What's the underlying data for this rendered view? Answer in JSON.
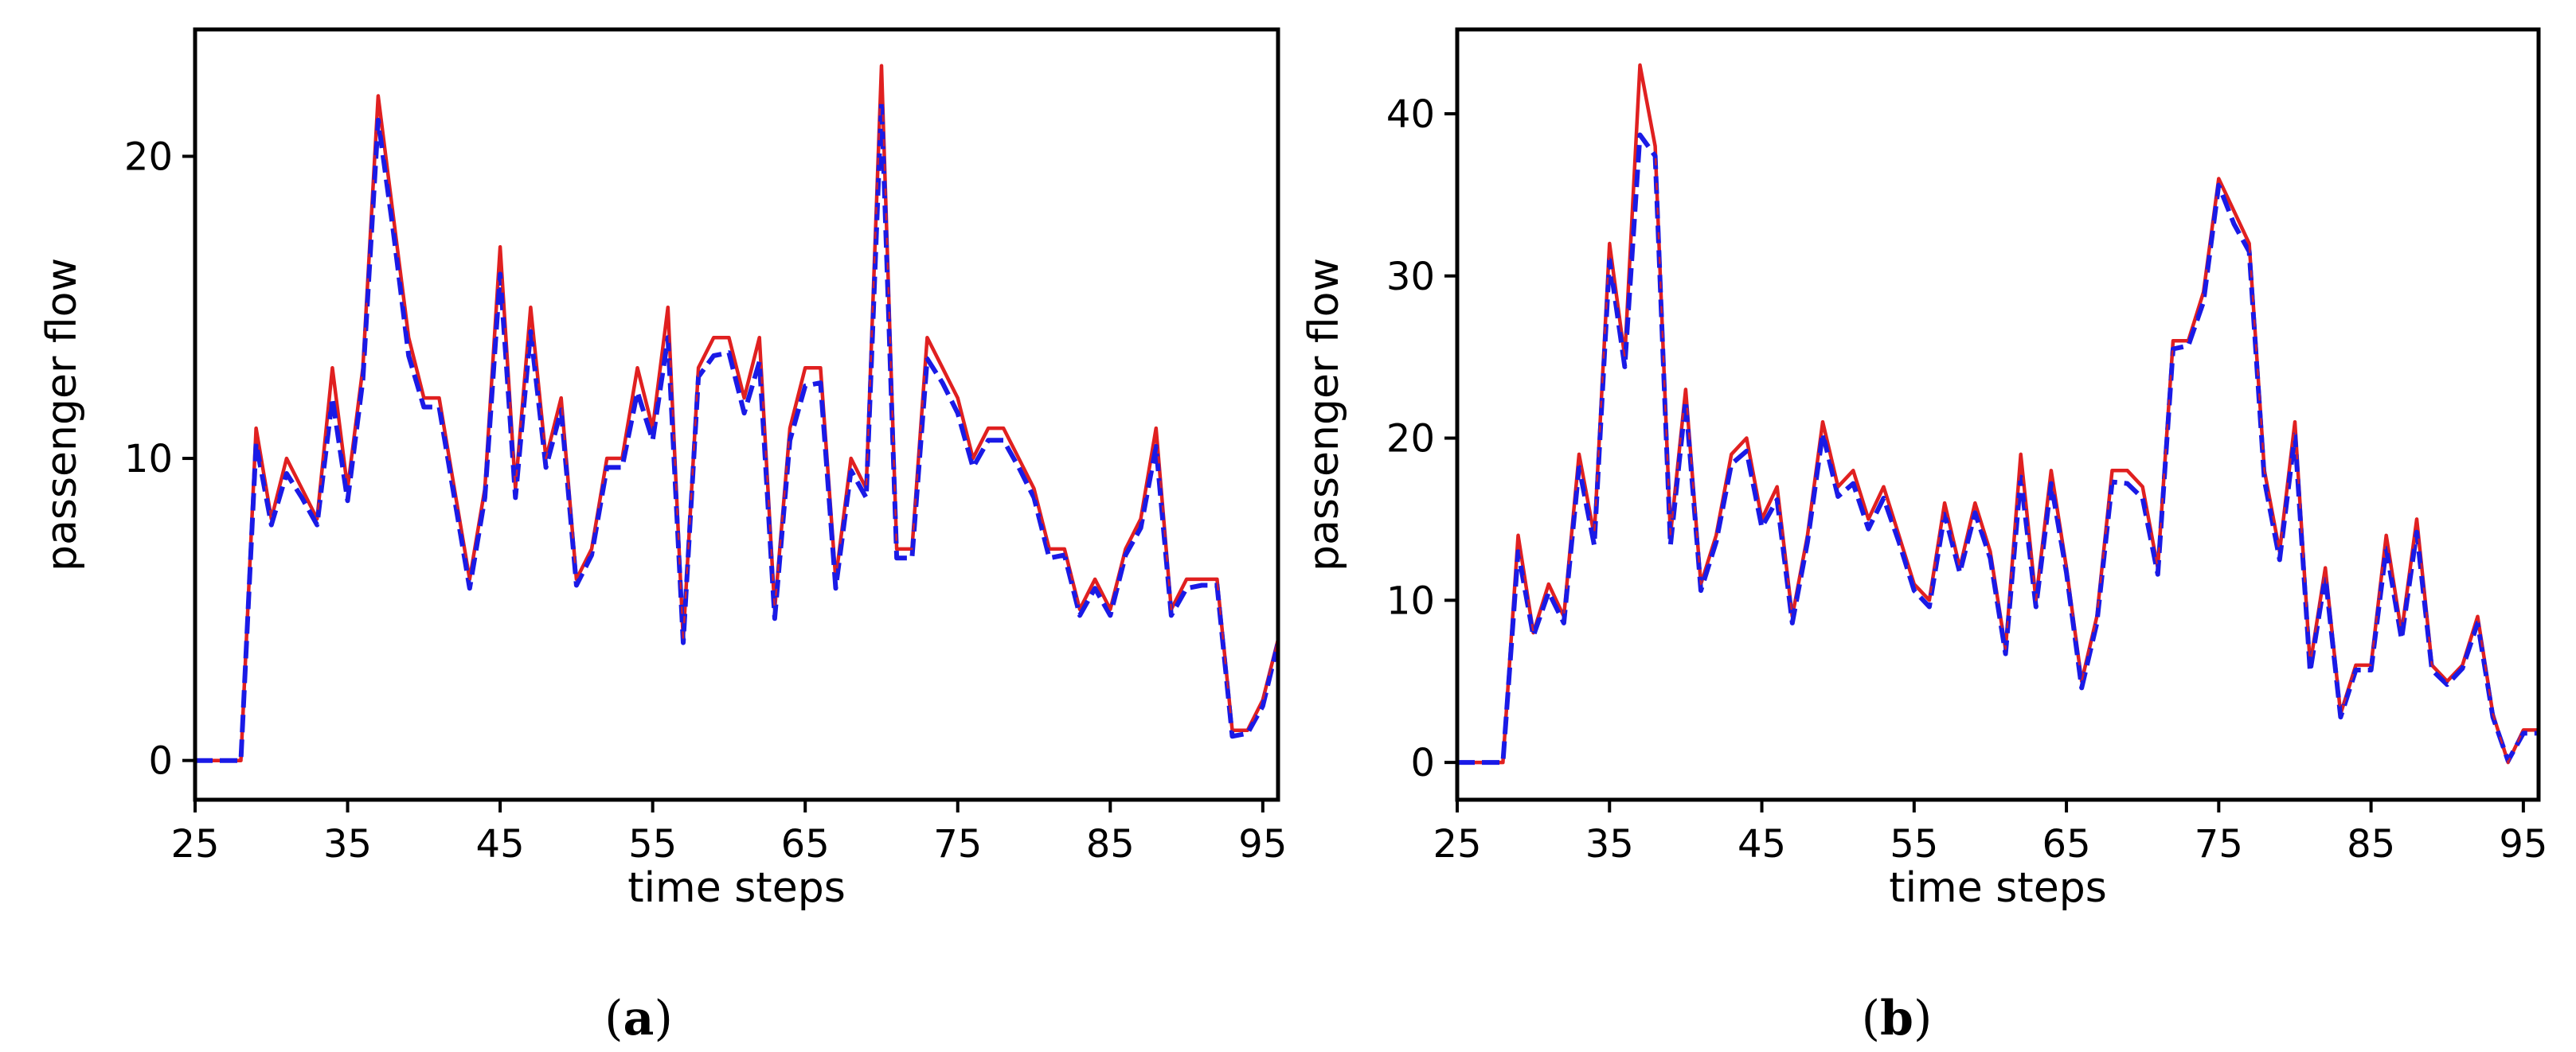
{
  "colors": {
    "actual": "#e02020",
    "predicted": "#1a1ae6",
    "axis": "#000000"
  },
  "chart_data": [
    {
      "type": "line",
      "panel_label_open": "(",
      "panel_label_letter": "a",
      "panel_label_close": ")",
      "xlabel": "time steps",
      "ylabel": "passenger flow",
      "xlim": [
        25,
        96
      ],
      "ylim": [
        -1.3,
        24.2
      ],
      "xticks": [
        25,
        35,
        45,
        55,
        65,
        75,
        85,
        95
      ],
      "yticks": [
        0,
        10,
        20
      ],
      "x_start": 25,
      "series": [
        {
          "style": "solid",
          "color": "#e02020",
          "values": [
            0,
            0,
            0,
            0,
            11,
            8,
            10,
            9,
            8,
            13,
            9,
            13,
            22,
            18,
            14,
            12,
            12,
            9,
            6,
            9,
            17,
            9,
            15,
            10,
            12,
            6,
            7,
            10,
            10,
            13,
            11,
            15,
            4,
            13,
            14,
            14,
            12,
            14,
            5,
            11,
            13,
            13,
            6,
            10,
            9,
            23,
            7,
            7,
            14,
            13,
            12,
            10,
            11,
            11,
            10,
            9,
            7,
            7,
            5,
            6,
            5,
            7,
            8,
            11,
            5,
            6,
            6,
            6,
            1,
            1,
            2,
            4
          ]
        },
        {
          "style": "dashed",
          "color": "#1a1ae6",
          "values": [
            0,
            0,
            0,
            0,
            10.5,
            7.8,
            9.5,
            8.7,
            7.8,
            12,
            8.6,
            12.6,
            21.2,
            17.5,
            13.4,
            11.7,
            11.7,
            8.7,
            5.7,
            8.7,
            16.1,
            8.7,
            14.2,
            9.7,
            11.6,
            5.8,
            6.8,
            9.7,
            9.7,
            12.2,
            10.6,
            14,
            3.9,
            12.7,
            13.4,
            13.5,
            11.5,
            13.2,
            4.7,
            10.6,
            12.4,
            12.5,
            5.7,
            9.6,
            8.7,
            21.8,
            6.7,
            6.7,
            13.3,
            12.5,
            11.5,
            9.7,
            10.6,
            10.6,
            9.7,
            8.7,
            6.7,
            6.8,
            4.8,
            5.7,
            4.8,
            6.8,
            7.7,
            10.4,
            4.8,
            5.7,
            5.8,
            5.8,
            0.8,
            0.9,
            1.8,
            3.9
          ]
        }
      ]
    },
    {
      "type": "line",
      "panel_label_open": "(",
      "panel_label_letter": "b",
      "panel_label_close": ")",
      "xlabel": "time steps",
      "ylabel": "passenger flow",
      "xlim": [
        25,
        96
      ],
      "ylim": [
        -2.3,
        45.2
      ],
      "xticks": [
        25,
        35,
        45,
        55,
        65,
        75,
        85,
        95
      ],
      "yticks": [
        0,
        10,
        20,
        30,
        40
      ],
      "x_start": 25,
      "series": [
        {
          "style": "solid",
          "color": "#e02020",
          "values": [
            0,
            0,
            0,
            0,
            14,
            8,
            11,
            9,
            19,
            14,
            32,
            25,
            43,
            38,
            14,
            23,
            11,
            14,
            19,
            20,
            15,
            17,
            9,
            14,
            21,
            17,
            18,
            15,
            17,
            14,
            11,
            10,
            16,
            12,
            16,
            13,
            7,
            19,
            10,
            18,
            12,
            5,
            9,
            18,
            18,
            17,
            12,
            26,
            26,
            29,
            36,
            34,
            32,
            18,
            13,
            21,
            6,
            12,
            3,
            6,
            6,
            14,
            8,
            15,
            6,
            5,
            6,
            9,
            3,
            0,
            2,
            2
          ]
        },
        {
          "style": "dashed",
          "color": "#1a1ae6",
          "values": [
            0,
            0,
            0,
            0,
            13,
            7.8,
            10.5,
            8.6,
            18.2,
            13.4,
            31,
            24.4,
            38.7,
            37.4,
            13.4,
            22.3,
            10.6,
            13.6,
            18.4,
            19.2,
            14.5,
            16.2,
            8.6,
            13.6,
            20.3,
            16.4,
            17.2,
            14.4,
            16.3,
            13.6,
            10.6,
            9.6,
            15.3,
            11.7,
            15.4,
            12.6,
            6.7,
            17.6,
            9.6,
            17.2,
            11.7,
            4.6,
            8.6,
            17.3,
            17.2,
            16.3,
            11.6,
            25.5,
            25.7,
            28.4,
            35.6,
            33.2,
            31.5,
            17.4,
            12.5,
            20.2,
            5.6,
            11.5,
            2.8,
            5.7,
            5.7,
            13.2,
            7.6,
            14.2,
            5.7,
            4.8,
            5.8,
            8.6,
            2.8,
            0.1,
            1.8,
            1.8
          ]
        }
      ]
    }
  ]
}
